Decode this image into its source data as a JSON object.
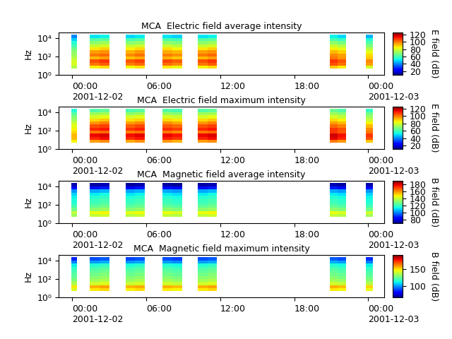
{
  "chart_data": [
    {
      "type": "heatmap",
      "title": "MCA  Electric field average intensity",
      "y_label": "Hz",
      "colorbar_label": "E field (dB)",
      "log": "y",
      "xlim": [
        -1.1,
        25.3
      ],
      "xticks": [
        {
          "value": 0,
          "label": "00:00\n2001-12-02"
        },
        {
          "value": 6,
          "label": "06:00"
        },
        {
          "value": 12,
          "label": "12:00"
        },
        {
          "value": 18,
          "label": "18:00"
        },
        {
          "value": 24,
          "label": "00:00\n2001-12-03"
        }
      ],
      "ylim": [
        1,
        40000
      ],
      "yticks": [
        {
          "value": 1,
          "label": "10⁰"
        },
        {
          "value": 100,
          "label": "10²"
        },
        {
          "value": 10000,
          "label": "10⁴"
        }
      ],
      "x_edges": [
        -0.1,
        0.35,
        1.43,
        2.2,
        3.03,
        4.34,
        5.1,
        5.9,
        7.3,
        8.1,
        8.9,
        10.2,
        11.0,
        11.7,
        20.9,
        21.5,
        22.2,
        23.8,
        24.4
      ],
      "y_edges": [
        5,
        10,
        20,
        50,
        100,
        200,
        500,
        1000,
        2000,
        5000,
        10000,
        25000
      ],
      "colorbar_range": [
        10,
        125
      ],
      "colorbar_ticks": [
        20,
        40,
        60,
        80,
        100,
        120
      ],
      "cells": [
        [
          75,
          null,
          85,
          88,
          null,
          84,
          87,
          null,
          86,
          83,
          null,
          85,
          88,
          null,
          90,
          86,
          null,
          80
        ],
        [
          80,
          null,
          100,
          103,
          null,
          99,
          102,
          null,
          101,
          98,
          null,
          100,
          103,
          null,
          105,
          101,
          null,
          95
        ],
        [
          80,
          null,
          105,
          108,
          null,
          104,
          107,
          null,
          106,
          103,
          null,
          105,
          108,
          null,
          108,
          104,
          null,
          98
        ],
        [
          75,
          null,
          92,
          95,
          null,
          91,
          94,
          null,
          93,
          90,
          null,
          92,
          95,
          null,
          100,
          96,
          null,
          90
        ],
        [
          72,
          null,
          100,
          102,
          null,
          98,
          101,
          null,
          99,
          97,
          null,
          100,
          102,
          null,
          98,
          95,
          null,
          88
        ],
        [
          70,
          null,
          95,
          97,
          null,
          93,
          96,
          null,
          94,
          92,
          null,
          95,
          97,
          null,
          92,
          89,
          null,
          82
        ],
        [
          65,
          null,
          86,
          89,
          null,
          85,
          88,
          null,
          87,
          84,
          null,
          86,
          89,
          null,
          85,
          82,
          null,
          75
        ],
        [
          60,
          null,
          78,
          80,
          null,
          77,
          79,
          null,
          78,
          76,
          null,
          78,
          80,
          null,
          78,
          75,
          null,
          68
        ],
        [
          55,
          null,
          70,
          72,
          null,
          69,
          71,
          null,
          70,
          68,
          null,
          70,
          72,
          null,
          70,
          67,
          null,
          62
        ],
        [
          48,
          null,
          62,
          63,
          null,
          60,
          62,
          null,
          61,
          59,
          null,
          62,
          63,
          null,
          60,
          58,
          null,
          55
        ],
        [
          40,
          null,
          50,
          52,
          null,
          49,
          51,
          null,
          50,
          48,
          null,
          50,
          52,
          null,
          52,
          49,
          null,
          45
        ]
      ]
    },
    {
      "type": "heatmap",
      "title": "MCA  Electric field maximum intensity",
      "y_label": "Hz",
      "colorbar_label": "E field (dB)",
      "log": "y",
      "xlim": [
        -1.1,
        25.3
      ],
      "xticks": [
        {
          "value": 0,
          "label": "00:00\n2001-12-02"
        },
        {
          "value": 6,
          "label": "06:00"
        },
        {
          "value": 12,
          "label": "12:00"
        },
        {
          "value": 18,
          "label": "18:00"
        },
        {
          "value": 24,
          "label": "00:00\n2001-12-03"
        }
      ],
      "ylim": [
        1,
        40000
      ],
      "yticks": [
        {
          "value": 1,
          "label": "10⁰"
        },
        {
          "value": 100,
          "label": "10²"
        },
        {
          "value": 10000,
          "label": "10⁴"
        }
      ],
      "x_edges": [
        -0.1,
        0.35,
        1.43,
        2.2,
        3.03,
        4.34,
        5.1,
        5.9,
        7.3,
        8.1,
        8.9,
        10.2,
        11.0,
        11.7,
        20.9,
        21.5,
        22.2,
        23.8,
        24.4
      ],
      "y_edges": [
        5,
        10,
        20,
        50,
        100,
        200,
        500,
        1000,
        2000,
        5000,
        10000,
        25000
      ],
      "colorbar_range": [
        10,
        125
      ],
      "colorbar_ticks": [
        20,
        40,
        60,
        80,
        100,
        120
      ],
      "cells": [
        [
          85,
          null,
          95,
          98,
          null,
          94,
          97,
          null,
          96,
          93,
          null,
          95,
          98,
          null,
          100,
          96,
          null,
          90
        ],
        [
          92,
          null,
          110,
          113,
          null,
          109,
          112,
          null,
          111,
          108,
          null,
          110,
          113,
          null,
          115,
          111,
          null,
          105
        ],
        [
          92,
          null,
          114,
          116,
          null,
          113,
          115,
          null,
          114,
          112,
          null,
          114,
          116,
          null,
          117,
          113,
          null,
          108
        ],
        [
          88,
          null,
          100,
          102,
          null,
          99,
          101,
          null,
          100,
          98,
          null,
          100,
          102,
          null,
          108,
          104,
          null,
          100
        ],
        [
          85,
          null,
          110,
          112,
          null,
          108,
          111,
          null,
          109,
          107,
          null,
          110,
          112,
          null,
          108,
          105,
          null,
          98
        ],
        [
          82,
          null,
          105,
          107,
          null,
          103,
          106,
          null,
          104,
          102,
          null,
          105,
          107,
          null,
          102,
          99,
          null,
          92
        ],
        [
          78,
          null,
          96,
          99,
          null,
          95,
          98,
          null,
          97,
          94,
          null,
          96,
          99,
          null,
          95,
          92,
          null,
          85
        ],
        [
          72,
          null,
          88,
          90,
          null,
          87,
          89,
          null,
          88,
          86,
          null,
          88,
          90,
          null,
          88,
          85,
          null,
          78
        ],
        [
          68,
          null,
          80,
          82,
          null,
          79,
          81,
          null,
          80,
          78,
          null,
          80,
          82,
          null,
          80,
          77,
          null,
          72
        ],
        [
          62,
          null,
          72,
          73,
          null,
          70,
          72,
          null,
          71,
          69,
          null,
          72,
          73,
          null,
          72,
          70,
          null,
          66
        ],
        [
          55,
          null,
          62,
          64,
          null,
          61,
          63,
          null,
          62,
          60,
          null,
          62,
          64,
          null,
          65,
          62,
          null,
          58
        ]
      ]
    },
    {
      "type": "heatmap",
      "title": "MCA  Magnetic field average intensity",
      "y_label": "Hz",
      "colorbar_label": "B field (dB)",
      "log": "y",
      "xlim": [
        -1.1,
        25.3
      ],
      "xticks": [
        {
          "value": 0,
          "label": "00:00\n2001-12-02"
        },
        {
          "value": 6,
          "label": "06:00"
        },
        {
          "value": 12,
          "label": "12:00"
        },
        {
          "value": 18,
          "label": "18:00"
        },
        {
          "value": 24,
          "label": "00:00\n2001-12-03"
        }
      ],
      "ylim": [
        1,
        40000
      ],
      "yticks": [
        {
          "value": 1,
          "label": "10⁰"
        },
        {
          "value": 100,
          "label": "10²"
        },
        {
          "value": 10000,
          "label": "10⁴"
        }
      ],
      "x_edges": [
        -0.1,
        0.35,
        1.43,
        2.2,
        3.03,
        4.34,
        5.1,
        5.9,
        7.3,
        8.1,
        8.9,
        10.2,
        11.0,
        11.7,
        20.9,
        21.5,
        22.2,
        23.8,
        24.4
      ],
      "y_edges": [
        5,
        10,
        20,
        50,
        100,
        200,
        500,
        1000,
        2000,
        5000,
        10000,
        25000
      ],
      "colorbar_range": [
        70,
        190
      ],
      "colorbar_ticks": [
        80,
        100,
        120,
        140,
        160,
        180
      ],
      "cells": [
        [
          135,
          null,
          140,
          142,
          null,
          139,
          141,
          null,
          140,
          138,
          null,
          140,
          142,
          null,
          140,
          138,
          null,
          136
        ],
        [
          140,
          null,
          146,
          148,
          null,
          145,
          147,
          null,
          146,
          144,
          null,
          146,
          148,
          null,
          146,
          144,
          null,
          142
        ],
        [
          128,
          null,
          132,
          134,
          null,
          131,
          133,
          null,
          132,
          130,
          null,
          132,
          134,
          null,
          132,
          130,
          null,
          128
        ],
        [
          122,
          null,
          126,
          128,
          null,
          125,
          127,
          null,
          126,
          124,
          null,
          126,
          128,
          null,
          126,
          124,
          null,
          122
        ],
        [
          118,
          null,
          122,
          124,
          null,
          121,
          123,
          null,
          122,
          120,
          null,
          122,
          124,
          null,
          122,
          120,
          null,
          118
        ],
        [
          116,
          null,
          120,
          122,
          null,
          119,
          121,
          null,
          120,
          118,
          null,
          120,
          122,
          null,
          120,
          118,
          null,
          116
        ],
        [
          114,
          null,
          117,
          119,
          null,
          116,
          118,
          null,
          117,
          115,
          null,
          117,
          119,
          null,
          117,
          115,
          null,
          114
        ],
        [
          110,
          null,
          113,
          115,
          null,
          112,
          114,
          null,
          113,
          111,
          null,
          113,
          115,
          null,
          113,
          111,
          null,
          110
        ],
        [
          102,
          null,
          105,
          107,
          null,
          104,
          106,
          null,
          105,
          103,
          null,
          105,
          107,
          null,
          105,
          103,
          null,
          102
        ],
        [
          85,
          null,
          86,
          88,
          null,
          85,
          87,
          null,
          86,
          84,
          null,
          86,
          88,
          null,
          88,
          86,
          null,
          85
        ],
        [
          75,
          null,
          74,
          76,
          null,
          73,
          75,
          null,
          74,
          72,
          null,
          74,
          76,
          null,
          76,
          74,
          null,
          75
        ]
      ]
    },
    {
      "type": "heatmap",
      "title": "MCA  Magnetic field maximum intensity",
      "y_label": "Hz",
      "colorbar_label": "B field (dB)",
      "log": "y",
      "xlim": [
        -1.1,
        25.3
      ],
      "xticks": [
        {
          "value": 0,
          "label": "00:00\n2001-12-02"
        },
        {
          "value": 6,
          "label": "06:00"
        },
        {
          "value": 12,
          "label": "12:00"
        },
        {
          "value": 18,
          "label": "18:00"
        },
        {
          "value": 24,
          "label": "00:00\n2001-12-03"
        }
      ],
      "ylim": [
        1,
        40000
      ],
      "yticks": [
        {
          "value": 1,
          "label": "10⁰"
        },
        {
          "value": 100,
          "label": "10²"
        },
        {
          "value": 10000,
          "label": "10⁴"
        }
      ],
      "x_edges": [
        -0.1,
        0.35,
        1.43,
        2.2,
        3.03,
        4.34,
        5.1,
        5.9,
        7.3,
        8.1,
        8.9,
        10.2,
        11.0,
        11.7,
        20.9,
        21.5,
        22.2,
        23.8,
        24.4
      ],
      "y_edges": [
        5,
        10,
        20,
        50,
        100,
        200,
        500,
        1000,
        2000,
        5000,
        10000,
        25000
      ],
      "colorbar_range": [
        65,
        190
      ],
      "colorbar_ticks": [
        100,
        150
      ],
      "cells": [
        [
          142,
          null,
          148,
          150,
          null,
          147,
          149,
          null,
          148,
          146,
          null,
          148,
          150,
          null,
          148,
          146,
          null,
          144
        ],
        [
          148,
          null,
          155,
          157,
          null,
          154,
          156,
          null,
          155,
          153,
          null,
          155,
          157,
          null,
          155,
          153,
          null,
          150
        ],
        [
          135,
          null,
          140,
          142,
          null,
          139,
          141,
          null,
          140,
          138,
          null,
          140,
          142,
          null,
          140,
          138,
          null,
          136
        ],
        [
          128,
          null,
          133,
          135,
          null,
          132,
          134,
          null,
          133,
          131,
          null,
          133,
          135,
          null,
          133,
          131,
          null,
          129
        ],
        [
          124,
          null,
          129,
          131,
          null,
          128,
          130,
          null,
          129,
          127,
          null,
          129,
          131,
          null,
          129,
          127,
          null,
          125
        ],
        [
          122,
          null,
          126,
          128,
          null,
          125,
          127,
          null,
          126,
          124,
          null,
          126,
          128,
          null,
          126,
          124,
          null,
          122
        ],
        [
          119,
          null,
          123,
          125,
          null,
          122,
          124,
          null,
          123,
          121,
          null,
          123,
          125,
          null,
          123,
          121,
          null,
          119
        ],
        [
          116,
          null,
          120,
          122,
          null,
          119,
          121,
          null,
          120,
          118,
          null,
          120,
          122,
          null,
          120,
          118,
          null,
          116
        ],
        [
          110,
          null,
          114,
          116,
          null,
          113,
          115,
          null,
          114,
          112,
          null,
          114,
          116,
          null,
          114,
          112,
          null,
          110
        ],
        [
          96,
          null,
          100,
          102,
          null,
          99,
          101,
          null,
          100,
          98,
          null,
          100,
          102,
          null,
          102,
          100,
          null,
          96
        ],
        [
          85,
          null,
          90,
          92,
          null,
          89,
          91,
          null,
          90,
          88,
          null,
          90,
          92,
          null,
          92,
          90,
          null,
          86
        ]
      ]
    }
  ]
}
